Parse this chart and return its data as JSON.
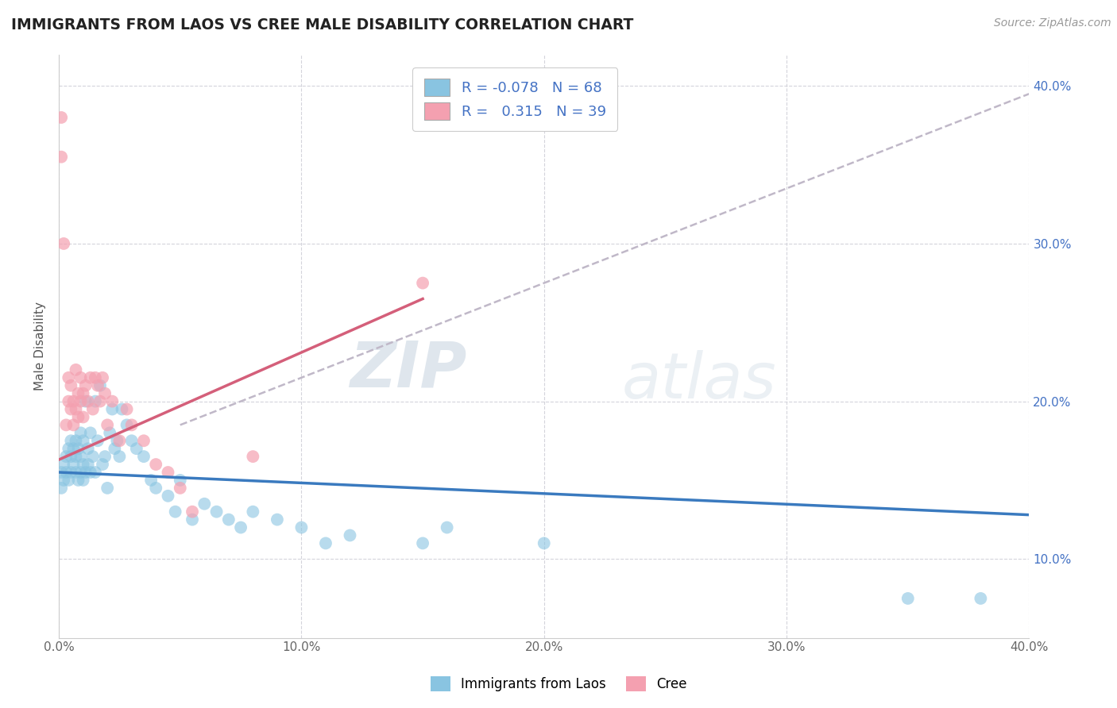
{
  "title": "IMMIGRANTS FROM LAOS VS CREE MALE DISABILITY CORRELATION CHART",
  "source": "Source: ZipAtlas.com",
  "xlabel": "",
  "ylabel": "Male Disability",
  "xlim": [
    0.0,
    0.4
  ],
  "ylim": [
    0.05,
    0.42
  ],
  "xticks": [
    0.0,
    0.1,
    0.2,
    0.3,
    0.4
  ],
  "xtick_labels": [
    "0.0%",
    "10.0%",
    "20.0%",
    "30.0%",
    "40.0%"
  ],
  "ytick_labels_right": [
    "10.0%",
    "20.0%",
    "30.0%",
    "40.0%"
  ],
  "yticks_right": [
    0.1,
    0.2,
    0.3,
    0.4
  ],
  "blue_R": -0.078,
  "blue_N": 68,
  "pink_R": 0.315,
  "pink_N": 39,
  "blue_color": "#89c4e1",
  "pink_color": "#f4a0b0",
  "blue_line_color": "#3a7abf",
  "pink_line_color": "#d45f7a",
  "gray_line_color": "#c0b8c8",
  "legend_blue_label": "Immigrants from Laos",
  "legend_pink_label": "Cree",
  "watermark_zip": "ZIP",
  "watermark_atlas": "atlas",
  "blue_line_x0": 0.0,
  "blue_line_x1": 0.4,
  "blue_line_y0": 0.155,
  "blue_line_y1": 0.128,
  "pink_line_x0": 0.0,
  "pink_line_x1": 0.15,
  "pink_line_y0": 0.163,
  "pink_line_y1": 0.265,
  "gray_line_x0": 0.05,
  "gray_line_x1": 0.4,
  "gray_line_y0": 0.185,
  "gray_line_y1": 0.395,
  "blue_scatter_x": [
    0.001,
    0.001,
    0.002,
    0.002,
    0.003,
    0.003,
    0.004,
    0.004,
    0.005,
    0.005,
    0.005,
    0.006,
    0.006,
    0.007,
    0.007,
    0.007,
    0.008,
    0.008,
    0.009,
    0.009,
    0.009,
    0.01,
    0.01,
    0.01,
    0.011,
    0.011,
    0.012,
    0.012,
    0.013,
    0.013,
    0.014,
    0.015,
    0.015,
    0.016,
    0.017,
    0.018,
    0.019,
    0.02,
    0.021,
    0.022,
    0.023,
    0.024,
    0.025,
    0.026,
    0.028,
    0.03,
    0.032,
    0.035,
    0.038,
    0.04,
    0.045,
    0.048,
    0.05,
    0.055,
    0.06,
    0.065,
    0.07,
    0.075,
    0.08,
    0.09,
    0.1,
    0.11,
    0.12,
    0.15,
    0.16,
    0.2,
    0.35,
    0.38
  ],
  "blue_scatter_y": [
    0.155,
    0.145,
    0.16,
    0.15,
    0.155,
    0.165,
    0.15,
    0.17,
    0.155,
    0.165,
    0.175,
    0.16,
    0.17,
    0.155,
    0.165,
    0.175,
    0.15,
    0.17,
    0.155,
    0.165,
    0.18,
    0.15,
    0.16,
    0.175,
    0.155,
    0.2,
    0.16,
    0.17,
    0.155,
    0.18,
    0.165,
    0.155,
    0.2,
    0.175,
    0.21,
    0.16,
    0.165,
    0.145,
    0.18,
    0.195,
    0.17,
    0.175,
    0.165,
    0.195,
    0.185,
    0.175,
    0.17,
    0.165,
    0.15,
    0.145,
    0.14,
    0.13,
    0.15,
    0.125,
    0.135,
    0.13,
    0.125,
    0.12,
    0.13,
    0.125,
    0.12,
    0.11,
    0.115,
    0.11,
    0.12,
    0.11,
    0.075,
    0.075
  ],
  "pink_scatter_x": [
    0.001,
    0.001,
    0.002,
    0.003,
    0.004,
    0.004,
    0.005,
    0.005,
    0.006,
    0.006,
    0.007,
    0.007,
    0.008,
    0.008,
    0.009,
    0.009,
    0.01,
    0.01,
    0.011,
    0.012,
    0.013,
    0.014,
    0.015,
    0.016,
    0.017,
    0.018,
    0.019,
    0.02,
    0.022,
    0.025,
    0.028,
    0.03,
    0.035,
    0.04,
    0.045,
    0.05,
    0.055,
    0.08,
    0.15
  ],
  "pink_scatter_y": [
    0.38,
    0.355,
    0.3,
    0.185,
    0.2,
    0.215,
    0.195,
    0.21,
    0.185,
    0.2,
    0.22,
    0.195,
    0.205,
    0.19,
    0.215,
    0.2,
    0.205,
    0.19,
    0.21,
    0.2,
    0.215,
    0.195,
    0.215,
    0.21,
    0.2,
    0.215,
    0.205,
    0.185,
    0.2,
    0.175,
    0.195,
    0.185,
    0.175,
    0.16,
    0.155,
    0.145,
    0.13,
    0.165,
    0.275
  ]
}
